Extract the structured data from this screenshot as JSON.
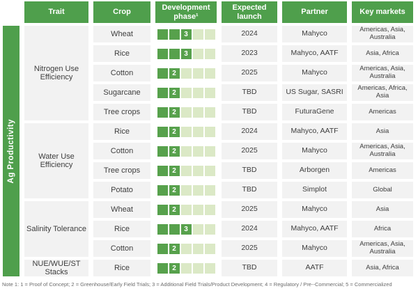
{
  "chart_data": {
    "type": "table",
    "columns": [
      "Trait",
      "Crop",
      "Development phase¹",
      "Expected launch",
      "Partner",
      "Key markets"
    ],
    "row_group_label": "Ag Productivity",
    "phase_scale_max": 5,
    "groups": [
      {
        "trait": "Nitrogen Use Efficiency",
        "rows": [
          {
            "crop": "Wheat",
            "phase": 3,
            "launch": "2024",
            "partner": "Mahyco",
            "markets": "Americas, Asia, Australia"
          },
          {
            "crop": "Rice",
            "phase": 3,
            "launch": "2023",
            "partner": "Mahyco, AATF",
            "markets": "Asia, Africa"
          },
          {
            "crop": "Cotton",
            "phase": 2,
            "launch": "2025",
            "partner": "Mahyco",
            "markets": "Americas, Asia, Australia"
          },
          {
            "crop": "Sugarcane",
            "phase": 2,
            "launch": "TBD",
            "partner": "US Sugar, SASRI",
            "markets": "Americas, Africa, Asia"
          },
          {
            "crop": "Tree crops",
            "phase": 2,
            "launch": "TBD",
            "partner": "FuturaGene",
            "markets": "Americas"
          }
        ]
      },
      {
        "trait": "Water Use Efficiency",
        "rows": [
          {
            "crop": "Rice",
            "phase": 2,
            "launch": "2024",
            "partner": "Mahyco, AATF",
            "markets": "Asia"
          },
          {
            "crop": "Cotton",
            "phase": 2,
            "launch": "2025",
            "partner": "Mahyco",
            "markets": "Americas, Asia, Australia"
          },
          {
            "crop": "Tree crops",
            "phase": 2,
            "launch": "TBD",
            "partner": "Arborgen",
            "markets": "Americas"
          },
          {
            "crop": "Potato",
            "phase": 2,
            "launch": "TBD",
            "partner": "Simplot",
            "markets": "Global"
          }
        ]
      },
      {
        "trait": "Salinity Tolerance",
        "rows": [
          {
            "crop": "Wheat",
            "phase": 2,
            "launch": "2025",
            "partner": "Mahyco",
            "markets": "Asia"
          },
          {
            "crop": "Rice",
            "phase": 3,
            "launch": "2024",
            "partner": "Mahyco, AATF",
            "markets": "Africa"
          },
          {
            "crop": "Cotton",
            "phase": 2,
            "launch": "2025",
            "partner": "Mahyco",
            "markets": "Americas, Asia, Australia"
          }
        ]
      },
      {
        "trait": "NUE/WUE/ST Stacks",
        "rows": [
          {
            "crop": "Rice",
            "phase": 2,
            "launch": "TBD",
            "partner": "AATF",
            "markets": "Asia, Africa"
          }
        ]
      }
    ]
  },
  "footnote": "Note 1: 1 = Proof of Concept; 2 = Greenhouse/Early Field Trials; 3 = Additional Field Trials/Product Development; 4 = Regulatory / Pre--Commercial; 5 = Commercialized",
  "colors": {
    "header_green": "#4f9f4c",
    "dark_square": "#57a14c",
    "light_square": "#dbe9c6",
    "cell_gray": "#f2f2f2",
    "text": "#3d3d3d",
    "note_gray": "#6b6b6b"
  }
}
